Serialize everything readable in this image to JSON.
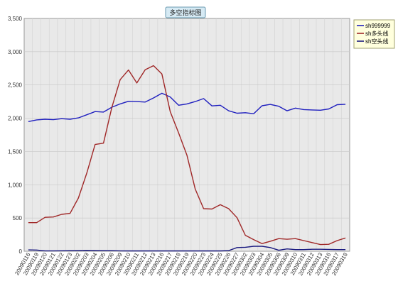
{
  "chart_data": {
    "type": "line",
    "title": "多空指标图",
    "xlabel": "",
    "ylabel": "",
    "ylim": [
      0,
      3500
    ],
    "y_ticks": [
      0,
      500,
      1000,
      1500,
      2000,
      2500,
      3000,
      3500
    ],
    "y_tick_labels": [
      "0",
      "500",
      "1,000",
      "1,500",
      "2,000",
      "2,500",
      "3,000",
      "3,500"
    ],
    "grid": true,
    "legend_position": "right",
    "x": [
      "20090116",
      "20090119",
      "20090120",
      "20090121",
      "20090122",
      "20090123",
      "20090202",
      "20090203",
      "20090204",
      "20090205",
      "20090206",
      "20090209",
      "20090210",
      "20090211",
      "20090212",
      "20090213",
      "20090216",
      "20090217",
      "20090218",
      "20090219",
      "20090220",
      "20090223",
      "20090224",
      "20090225",
      "20090226",
      "20090227",
      "20090302",
      "20090303",
      "20090304",
      "20090305",
      "20090306",
      "20090309",
      "20090310",
      "20090311",
      "20090312",
      "20090313",
      "20090316",
      "20090317",
      "20090318"
    ],
    "series": [
      {
        "name": "sh999999",
        "color": "#1f1fbf",
        "values": [
          1950,
          1975,
          1985,
          1978,
          1993,
          1985,
          2005,
          2052,
          2100,
          2093,
          2165,
          2215,
          2255,
          2250,
          2243,
          2305,
          2375,
          2320,
          2195,
          2215,
          2250,
          2295,
          2185,
          2195,
          2112,
          2075,
          2083,
          2068,
          2188,
          2208,
          2180,
          2112,
          2152,
          2130,
          2125,
          2120,
          2140,
          2203,
          2210
        ]
      },
      {
        "name": "sh多头线",
        "color": "#a02828",
        "values": [
          430,
          430,
          510,
          515,
          555,
          570,
          800,
          1175,
          1605,
          1625,
          2160,
          2580,
          2725,
          2530,
          2730,
          2790,
          2665,
          2100,
          1780,
          1445,
          935,
          640,
          635,
          700,
          640,
          505,
          240,
          175,
          115,
          150,
          190,
          180,
          190,
          160,
          130,
          100,
          105,
          160,
          200
        ]
      },
      {
        "name": "sh空头线",
        "color": "#1a1a80",
        "values": [
          20,
          18,
          6,
          6,
          7,
          10,
          12,
          14,
          12,
          10,
          10,
          6,
          5,
          5,
          5,
          5,
          5,
          5,
          5,
          5,
          5,
          5,
          5,
          5,
          10,
          55,
          60,
          75,
          75,
          55,
          15,
          35,
          25,
          25,
          30,
          30,
          28,
          25,
          25
        ]
      }
    ]
  }
}
